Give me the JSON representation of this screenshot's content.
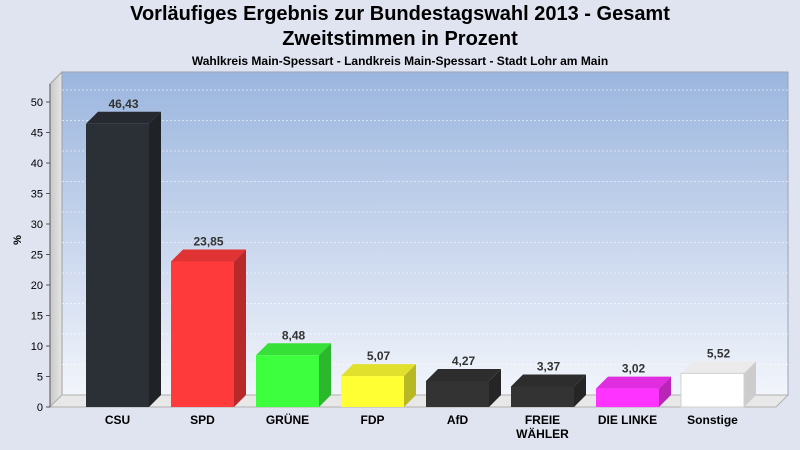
{
  "title": "Vorläufiges Ergebnis zur Bundestagswahl 2013 - Gesamt",
  "subtitle": "Zweitstimmen in Prozent",
  "subsubtitle": "Wahlkreis Main-Spessart - Landkreis Main-Spessart - Stadt Lohr am Main",
  "chart_data": {
    "type": "bar",
    "ylabel": "%",
    "xlabel": "",
    "ylim": [
      0,
      50
    ],
    "yticks": [
      0,
      5,
      10,
      15,
      20,
      25,
      30,
      35,
      40,
      45,
      50
    ],
    "grid": true,
    "categories": [
      "CSU",
      "SPD",
      "GRÜNE",
      "FDP",
      "AfD",
      "FREIE WÄHLER",
      "DIE LINKE",
      "Sonstige"
    ],
    "values": [
      46.43,
      23.85,
      8.48,
      5.07,
      4.27,
      3.37,
      3.02,
      5.52
    ],
    "value_labels": [
      "46,43",
      "23,85",
      "8,48",
      "5,07",
      "4,27",
      "3,37",
      "3,02",
      "5,52"
    ],
    "colors": [
      "#2b2f36",
      "#ff3a3a",
      "#3dff3d",
      "#ffff33",
      "#333333",
      "#333333",
      "#ff33ff",
      "#ffffff"
    ]
  }
}
